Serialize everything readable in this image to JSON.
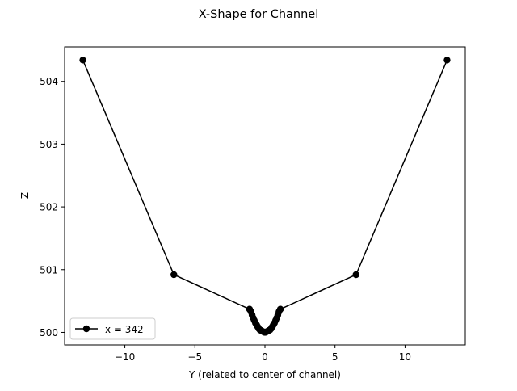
{
  "chart_data": {
    "type": "line",
    "title": "X-Shape for Channel",
    "xlabel": "Y (related to center of channel)",
    "ylabel": "Z",
    "xlim": [
      -14.3,
      14.3
    ],
    "ylim": [
      499.8,
      504.55
    ],
    "xticks": [
      -10,
      -5,
      0,
      5,
      10
    ],
    "xtick_labels": [
      "−10",
      "−5",
      "0",
      "5",
      "10"
    ],
    "yticks": [
      500,
      501,
      502,
      503,
      504
    ],
    "ytick_labels": [
      "500",
      "501",
      "502",
      "503",
      "504"
    ],
    "grid": false,
    "legend_position": "lower-left",
    "series": [
      {
        "name": "x = 342",
        "color": "#000000",
        "marker": "circle",
        "x": [
          -13.0,
          -6.5,
          -1.1,
          -1.0,
          -0.92,
          -0.84,
          -0.76,
          -0.68,
          -0.6,
          -0.52,
          -0.44,
          -0.36,
          -0.28,
          -0.2,
          -0.12,
          -0.04,
          0.04,
          0.12,
          0.2,
          0.28,
          0.36,
          0.44,
          0.52,
          0.6,
          0.68,
          0.76,
          0.84,
          0.92,
          1.0,
          1.1,
          6.5,
          13.0
        ],
        "y": [
          504.34,
          500.92,
          500.37,
          500.33,
          500.28,
          500.23,
          500.19,
          500.15,
          500.12,
          500.09,
          500.06,
          500.04,
          500.03,
          500.02,
          500.01,
          500.0,
          500.0,
          500.01,
          500.02,
          500.03,
          500.04,
          500.06,
          500.09,
          500.12,
          500.15,
          500.19,
          500.23,
          500.28,
          500.33,
          500.37,
          500.92,
          504.34
        ]
      }
    ]
  }
}
